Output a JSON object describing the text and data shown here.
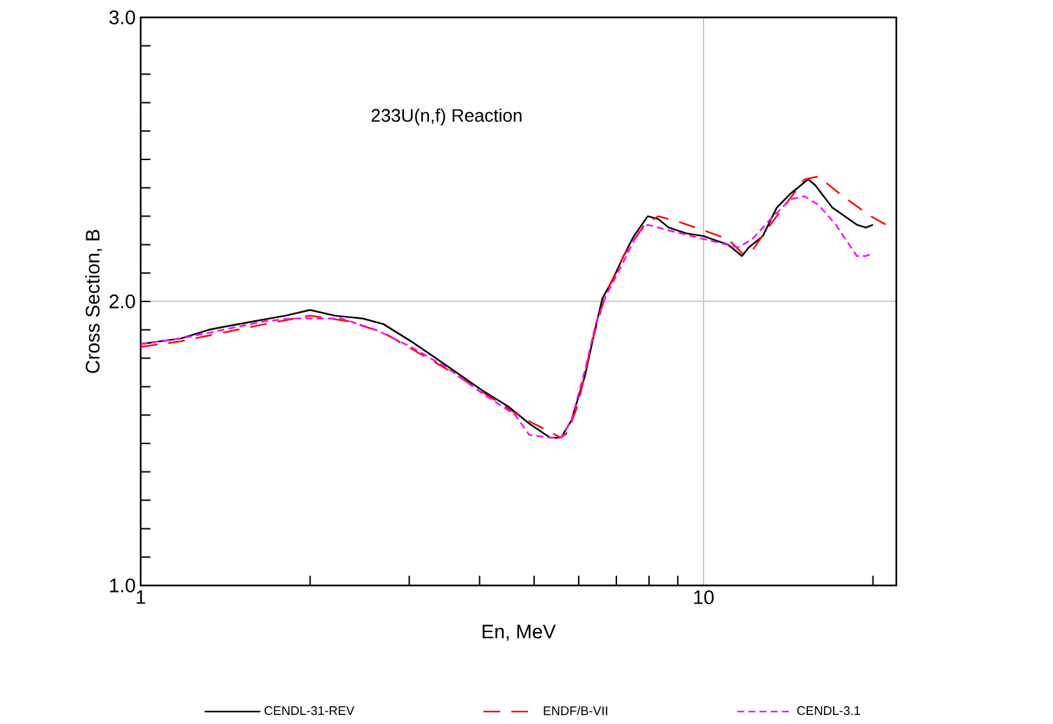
{
  "chart_data": {
    "type": "line",
    "title": "233U(n,f) Reaction",
    "xlabel": "En, MeV",
    "ylabel": "Cross Section, B",
    "log": "x",
    "grid": true,
    "legend": "bottom",
    "marker": "none",
    "xlim": [
      1,
      22
    ],
    "ylim": [
      1,
      3
    ],
    "xticks": [
      1,
      {
        "value": 2,
        "label": null
      },
      {
        "value": 3,
        "label": null
      },
      {
        "value": 4,
        "label": null
      },
      {
        "value": 5,
        "label": null
      },
      {
        "value": 6,
        "label": null
      },
      {
        "value": 7,
        "label": null
      },
      {
        "value": 8,
        "label": null
      },
      {
        "value": 9,
        "label": null
      },
      10,
      {
        "value": 20,
        "label": null
      }
    ],
    "yticks": [
      {
        "value": 1,
        "label": "1.0"
      },
      {
        "value": 1.1,
        "label": null
      },
      {
        "value": 1.2,
        "label": null
      },
      {
        "value": 1.3,
        "label": null
      },
      {
        "value": 1.4,
        "label": null
      },
      {
        "value": 1.5,
        "label": null
      },
      {
        "value": 1.6,
        "label": null
      },
      {
        "value": 1.7,
        "label": null
      },
      {
        "value": 1.8,
        "label": null
      },
      {
        "value": 1.9,
        "label": null
      },
      {
        "value": 2,
        "label": "2.0"
      },
      {
        "value": 2.1,
        "label": null
      },
      {
        "value": 2.2,
        "label": null
      },
      {
        "value": 2.3,
        "label": null
      },
      {
        "value": 2.4,
        "label": null
      },
      {
        "value": 2.5,
        "label": null
      },
      {
        "value": 2.6,
        "label": null
      },
      {
        "value": 2.7,
        "label": null
      },
      {
        "value": 2.8,
        "label": null
      },
      {
        "value": 2.9,
        "label": null
      },
      {
        "value": 3,
        "label": "3.0"
      }
    ],
    "series": [
      {
        "name": "CENDL-31-REV",
        "color": "#000000",
        "line_style": "solid",
        "x": [
          1.0,
          1.18,
          1.32,
          1.4,
          1.59,
          1.81,
          2.0,
          2.21,
          2.48,
          2.7,
          3.02,
          3.29,
          3.58,
          4.02,
          4.5,
          4.9,
          5.34,
          5.58,
          5.82,
          6.16,
          6.43,
          6.61,
          6.91,
          7.21,
          7.52,
          7.96,
          8.31,
          8.67,
          9.31,
          10,
          11.05,
          11.7,
          12.03,
          12.74,
          13.49,
          14.28,
          15.34,
          15.78,
          16.94,
          18.72,
          19.43,
          20
        ],
        "values": [
          1.85,
          1.87,
          1.9,
          1.91,
          1.93,
          1.95,
          1.97,
          1.95,
          1.94,
          1.92,
          1.86,
          1.81,
          1.76,
          1.69,
          1.63,
          1.57,
          1.52,
          1.52,
          1.58,
          1.74,
          1.91,
          2.01,
          2.08,
          2.16,
          2.23,
          2.3,
          2.29,
          2.26,
          2.24,
          2.23,
          2.2,
          2.16,
          2.19,
          2.23,
          2.33,
          2.38,
          2.43,
          2.41,
          2.33,
          2.27,
          2.26,
          2.27
        ]
      },
      {
        "name": "ENDF/B-VII",
        "color": "#ff0000",
        "line_style": "dashed",
        "x": [
          1.0,
          1.18,
          1.4,
          1.66,
          2.0,
          2.34,
          2.7,
          3.11,
          3.58,
          4.13,
          4.77,
          5.34,
          5.58,
          5.74,
          5.99,
          6.34,
          6.71,
          7.21,
          7.85,
          8.31,
          9.05,
          10,
          11.05,
          11.7,
          12.21,
          12.92,
          14.08,
          15.12,
          16.0,
          17.68,
          19.82,
          22.0
        ],
        "values": [
          1.84,
          1.86,
          1.89,
          1.92,
          1.95,
          1.93,
          1.89,
          1.82,
          1.75,
          1.67,
          1.59,
          1.54,
          1.52,
          1.54,
          1.64,
          1.86,
          2.03,
          2.16,
          2.27,
          2.3,
          2.28,
          2.25,
          2.22,
          2.17,
          2.18,
          2.25,
          2.35,
          2.43,
          2.44,
          2.37,
          2.3,
          2.25
        ]
      },
      {
        "name": "CENDL-3.1",
        "color": "#ff00ff",
        "line_style": "dashed",
        "x": [
          1.0,
          1.18,
          1.4,
          1.66,
          1.86,
          2.0,
          2.27,
          2.62,
          3.02,
          3.48,
          4.02,
          4.63,
          4.9,
          5.34,
          5.58,
          5.82,
          6.16,
          6.43,
          6.71,
          7.21,
          7.63,
          7.96,
          8.67,
          10,
          11.53,
          12.21,
          13.3,
          14.28,
          15.12,
          16.0,
          17.18,
          18.72,
          19.43,
          20
        ],
        "values": [
          1.85,
          1.87,
          1.9,
          1.93,
          1.94,
          1.94,
          1.94,
          1.9,
          1.84,
          1.77,
          1.68,
          1.6,
          1.53,
          1.52,
          1.52,
          1.58,
          1.76,
          1.92,
          2.02,
          2.14,
          2.24,
          2.27,
          2.25,
          2.22,
          2.19,
          2.22,
          2.3,
          2.36,
          2.37,
          2.34,
          2.27,
          2.16,
          2.16,
          2.17
        ]
      }
    ]
  }
}
